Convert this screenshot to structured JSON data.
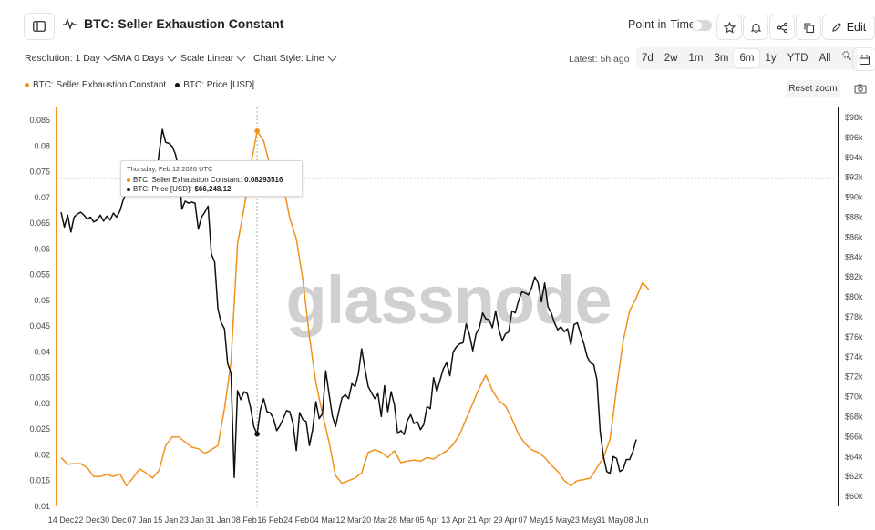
{
  "header": {
    "title": "BTC: Seller Exhaustion Constant",
    "point_in_time_label": "Point-in-Time",
    "edit_label": "Edit"
  },
  "controls": {
    "resolution": "Resolution: 1 Day",
    "sma": "SMA 0 Days",
    "scale": "Scale Linear",
    "chart_style": "Chart Style: Line",
    "latest": "Latest: 5h ago",
    "ranges": [
      "7d",
      "2w",
      "1m",
      "3m",
      "6m",
      "1y",
      "YTD",
      "All"
    ],
    "active_range": "6m"
  },
  "legend": {
    "series1": "BTC: Seller Exhaustion Constant",
    "series2": "BTC: Price [USD]"
  },
  "reset_zoom_label": "Reset zoom",
  "watermark": "glassnode",
  "tooltip": {
    "date": "Thursday, Feb 12 2026 UTC",
    "row1_label": "BTC: Seller Exhaustion Constant:",
    "row1_value": "0.08293516",
    "row2_label": "BTC: Price [USD]:",
    "row2_value": "$66,248.12"
  },
  "colors": {
    "sec": "#f0921c",
    "price": "#111111"
  },
  "chart_data": {
    "type": "line",
    "x_labels": [
      "14 Dec",
      "22 Dec",
      "30 Dec",
      "07 Jan",
      "15 Jan",
      "23 Jan",
      "31 Jan",
      "08 Feb",
      "16 Feb",
      "24 Feb",
      "04 Mar",
      "12 Mar",
      "20 Mar",
      "28 Mar",
      "05 Apr",
      "13 Apr",
      "21 Apr",
      "29 Apr",
      "07 May",
      "15 May",
      "23 May",
      "31 May",
      "08 Jun"
    ],
    "y_left_ticks": [
      "0.01",
      "0.015",
      "0.02",
      "0.025",
      "0.03",
      "0.035",
      "0.04",
      "0.045",
      "0.05",
      "0.055",
      "0.06",
      "0.065",
      "0.07",
      "0.075",
      "0.08",
      "0.085"
    ],
    "y_right_ticks": [
      "$60k",
      "$62k",
      "$64k",
      "$66k",
      "$68k",
      "$70k",
      "$72k",
      "$74k",
      "$76k",
      "$78k",
      "$80k",
      "$82k",
      "$84k",
      "$86k",
      "$88k",
      "$90k",
      "$92k",
      "$94k",
      "$96k",
      "$98k"
    ],
    "y_left_range": [
      0.01,
      0.0875
    ],
    "y_right_range": [
      59000,
      99000
    ],
    "grid": false,
    "legend_placement": "top-left",
    "series": [
      {
        "name": "BTC: Seller Exhaustion Constant",
        "axis": "left",
        "points": [
          [
            "14 Dec",
            0.0195
          ],
          [
            "16 Dec",
            0.0182
          ],
          [
            "18 Dec",
            0.0183
          ],
          [
            "20 Dec",
            0.0183
          ],
          [
            "22 Dec",
            0.0175
          ],
          [
            "24 Dec",
            0.0158
          ],
          [
            "26 Dec",
            0.0158
          ],
          [
            "28 Dec",
            0.0162
          ],
          [
            "30 Dec",
            0.0158
          ],
          [
            "01 Jan",
            0.0163
          ],
          [
            "03 Jan",
            0.014
          ],
          [
            "05 Jan",
            0.0155
          ],
          [
            "07 Jan",
            0.0173
          ],
          [
            "09 Jan",
            0.0165
          ],
          [
            "11 Jan",
            0.0155
          ],
          [
            "13 Jan",
            0.017
          ],
          [
            "15 Jan",
            0.0218
          ],
          [
            "17 Jan",
            0.0235
          ],
          [
            "19 Jan",
            0.0235
          ],
          [
            "21 Jan",
            0.0225
          ],
          [
            "23 Jan",
            0.0215
          ],
          [
            "25 Jan",
            0.0212
          ],
          [
            "27 Jan",
            0.0203
          ],
          [
            "29 Jan",
            0.021
          ],
          [
            "31 Jan",
            0.0218
          ],
          [
            "02 Feb",
            0.029
          ],
          [
            "04 Feb",
            0.038
          ],
          [
            "06 Feb",
            0.061
          ],
          [
            "08 Feb",
            0.068
          ],
          [
            "10 Feb",
            0.076
          ],
          [
            "12 Feb",
            0.0829
          ],
          [
            "14 Feb",
            0.081
          ],
          [
            "16 Feb",
            0.076
          ],
          [
            "18 Feb",
            0.073
          ],
          [
            "20 Feb",
            0.0725
          ],
          [
            "22 Feb",
            0.066
          ],
          [
            "24 Feb",
            0.062
          ],
          [
            "26 Feb",
            0.054
          ],
          [
            "28 Feb",
            0.043
          ],
          [
            "02 Mar",
            0.034
          ],
          [
            "04 Mar",
            0.028
          ],
          [
            "06 Mar",
            0.0225
          ],
          [
            "08 Mar",
            0.016
          ],
          [
            "10 Mar",
            0.0145
          ],
          [
            "12 Mar",
            0.015
          ],
          [
            "14 Mar",
            0.0155
          ],
          [
            "16 Mar",
            0.0165
          ],
          [
            "18 Mar",
            0.0205
          ],
          [
            "20 Mar",
            0.021
          ],
          [
            "22 Mar",
            0.0205
          ],
          [
            "24 Mar",
            0.0195
          ],
          [
            "26 Mar",
            0.0208
          ],
          [
            "28 Mar",
            0.0185
          ],
          [
            "30 Mar",
            0.0188
          ],
          [
            "01 Apr",
            0.019
          ],
          [
            "03 Apr",
            0.0188
          ],
          [
            "05 Apr",
            0.0195
          ],
          [
            "07 Apr",
            0.0192
          ],
          [
            "09 Apr",
            0.02
          ],
          [
            "11 Apr",
            0.0208
          ],
          [
            "13 Apr",
            0.022
          ],
          [
            "15 Apr",
            0.024
          ],
          [
            "17 Apr",
            0.027
          ],
          [
            "19 Apr",
            0.03
          ],
          [
            "21 Apr",
            0.033
          ],
          [
            "23 Apr",
            0.0355
          ],
          [
            "25 Apr",
            0.0325
          ],
          [
            "27 Apr",
            0.0305
          ],
          [
            "29 Apr",
            0.0295
          ],
          [
            "01 May",
            0.027
          ],
          [
            "03 May",
            0.024
          ],
          [
            "05 May",
            0.0222
          ],
          [
            "07 May",
            0.021
          ],
          [
            "09 May",
            0.0205
          ],
          [
            "11 May",
            0.0195
          ],
          [
            "13 May",
            0.018
          ],
          [
            "15 May",
            0.0168
          ],
          [
            "17 May",
            0.015
          ],
          [
            "19 May",
            0.014
          ],
          [
            "21 May",
            0.015
          ],
          [
            "23 May",
            0.0152
          ],
          [
            "25 May",
            0.0155
          ],
          [
            "27 May",
            0.0175
          ],
          [
            "29 May",
            0.0195
          ],
          [
            "31 May",
            0.023
          ],
          [
            "02 Jun",
            0.033
          ],
          [
            "04 Jun",
            0.042
          ],
          [
            "06 Jun",
            0.048
          ],
          [
            "08 Jun",
            0.0505
          ],
          [
            "10 Jun",
            0.0535
          ],
          [
            "12 Jun",
            0.052
          ]
        ]
      },
      {
        "name": "BTC: Price [USD]",
        "axis": "right",
        "points": [
          [
            "14 Dec",
            88500
          ],
          [
            "15 Dec",
            87000
          ],
          [
            "16 Dec",
            88200
          ],
          [
            "17 Dec",
            86500
          ],
          [
            "18 Dec",
            88000
          ],
          [
            "19 Dec",
            88300
          ],
          [
            "20 Dec",
            88500
          ],
          [
            "21 Dec",
            88200
          ],
          [
            "22 Dec",
            87800
          ],
          [
            "23 Dec",
            88000
          ],
          [
            "24 Dec",
            87500
          ],
          [
            "25 Dec",
            87700
          ],
          [
            "26 Dec",
            88200
          ],
          [
            "27 Dec",
            87600
          ],
          [
            "28 Dec",
            88100
          ],
          [
            "29 Dec",
            87700
          ],
          [
            "30 Dec",
            88400
          ],
          [
            "31 Dec",
            88000
          ],
          [
            "01 Jan",
            88600
          ],
          [
            "02 Jan",
            89700
          ],
          [
            "03 Jan",
            90500
          ],
          [
            "04 Jan",
            91800
          ],
          [
            "05 Jan",
            93000
          ],
          [
            "06 Jan",
            92500
          ],
          [
            "07 Jan",
            91500
          ],
          [
            "08 Jan",
            90800
          ],
          [
            "09 Jan",
            90500
          ],
          [
            "10 Jan",
            90200
          ],
          [
            "11 Jan",
            90800
          ],
          [
            "12 Jan",
            91500
          ],
          [
            "13 Jan",
            94500
          ],
          [
            "14 Jan",
            96800
          ],
          [
            "15 Jan",
            95500
          ],
          [
            "16 Jan",
            95400
          ],
          [
            "17 Jan",
            95100
          ],
          [
            "18 Jan",
            94300
          ],
          [
            "19 Jan",
            92800
          ],
          [
            "20 Jan",
            88800
          ],
          [
            "21 Jan",
            89600
          ],
          [
            "22 Jan",
            89400
          ],
          [
            "23 Jan",
            89500
          ],
          [
            "24 Jan",
            89400
          ],
          [
            "25 Jan",
            86800
          ],
          [
            "26 Jan",
            88000
          ],
          [
            "27 Jan",
            88500
          ],
          [
            "28 Jan",
            89100
          ],
          [
            "29 Jan",
            84300
          ],
          [
            "30 Jan",
            83500
          ],
          [
            "31 Jan",
            78800
          ],
          [
            "01 Feb",
            77400
          ],
          [
            "02 Feb",
            76800
          ],
          [
            "03 Feb",
            73300
          ],
          [
            "04 Feb",
            72400
          ],
          [
            "05 Feb",
            61900
          ],
          [
            "06 Feb",
            70600
          ],
          [
            "07 Feb",
            69700
          ],
          [
            "08 Feb",
            70500
          ],
          [
            "09 Feb",
            70300
          ],
          [
            "10 Feb",
            68900
          ],
          [
            "11 Feb",
            67000
          ],
          [
            "12 Feb",
            66250
          ],
          [
            "13 Feb",
            68700
          ],
          [
            "14 Feb",
            69800
          ],
          [
            "15 Feb",
            68500
          ],
          [
            "16 Feb",
            68400
          ],
          [
            "17 Feb",
            67800
          ],
          [
            "18 Feb",
            66600
          ],
          [
            "19 Feb",
            67100
          ],
          [
            "20 Feb",
            67800
          ],
          [
            "21 Feb",
            68600
          ],
          [
            "22 Feb",
            68500
          ],
          [
            "23 Feb",
            67300
          ],
          [
            "24 Feb",
            64600
          ],
          [
            "25 Feb",
            68400
          ],
          [
            "26 Feb",
            67700
          ],
          [
            "27 Feb",
            67500
          ],
          [
            "28 Feb",
            65100
          ],
          [
            "01 Mar",
            66700
          ],
          [
            "02 Mar",
            69500
          ],
          [
            "03 Mar",
            67800
          ],
          [
            "04 Mar",
            68300
          ],
          [
            "05 Mar",
            72600
          ],
          [
            "06 Mar",
            70300
          ],
          [
            "07 Mar",
            68100
          ],
          [
            "08 Mar",
            67000
          ],
          [
            "09 Mar",
            68500
          ],
          [
            "10 Mar",
            69900
          ],
          [
            "11 Mar",
            70200
          ],
          [
            "12 Mar",
            69800
          ],
          [
            "13 Mar",
            71300
          ],
          [
            "14 Mar",
            71000
          ],
          [
            "15 Mar",
            72300
          ],
          [
            "16 Mar",
            74800
          ],
          [
            "17 Mar",
            72800
          ],
          [
            "18 Mar",
            71000
          ],
          [
            "19 Mar",
            70400
          ],
          [
            "20 Mar",
            69800
          ],
          [
            "21 Mar",
            70300
          ],
          [
            "22 Mar",
            68000
          ],
          [
            "23 Mar",
            71100
          ],
          [
            "24 Mar",
            68500
          ],
          [
            "25 Mar",
            70500
          ],
          [
            "26 Mar",
            69200
          ],
          [
            "27 Mar",
            66300
          ],
          [
            "28 Mar",
            66600
          ],
          [
            "29 Mar",
            66200
          ],
          [
            "30 Mar",
            67600
          ],
          [
            "31 Mar",
            68200
          ],
          [
            "01 Apr",
            67300
          ],
          [
            "02 Apr",
            67500
          ],
          [
            "03 Apr",
            66700
          ],
          [
            "04 Apr",
            67200
          ],
          [
            "05 Apr",
            69000
          ],
          [
            "06 Apr",
            68800
          ],
          [
            "07 Apr",
            71900
          ],
          [
            "08 Apr",
            70500
          ],
          [
            "09 Apr",
            71700
          ],
          [
            "10 Apr",
            72800
          ],
          [
            "11 Apr",
            73400
          ],
          [
            "12 Apr",
            72100
          ],
          [
            "13 Apr",
            74500
          ],
          [
            "14 Apr",
            75000
          ],
          [
            "15 Apr",
            75300
          ],
          [
            "16 Apr",
            75400
          ],
          [
            "17 Apr",
            77300
          ],
          [
            "18 Apr",
            76200
          ],
          [
            "19 Apr",
            74600
          ],
          [
            "20 Apr",
            76300
          ],
          [
            "21 Apr",
            76900
          ],
          [
            "22 Apr",
            78400
          ],
          [
            "23 Apr",
            77800
          ],
          [
            "24 Apr",
            77700
          ],
          [
            "25 Apr",
            76900
          ],
          [
            "26 Apr",
            78600
          ],
          [
            "27 Apr",
            76700
          ],
          [
            "28 Apr",
            75600
          ],
          [
            "29 Apr",
            76300
          ],
          [
            "30 Apr",
            76500
          ],
          [
            "01 May",
            78600
          ],
          [
            "02 May",
            78400
          ],
          [
            "03 May",
            79600
          ],
          [
            "04 May",
            80500
          ],
          [
            "05 May",
            80400
          ],
          [
            "06 May",
            80200
          ],
          [
            "07 May",
            80900
          ],
          [
            "08 May",
            82000
          ],
          [
            "09 May",
            81400
          ],
          [
            "10 May",
            79500
          ],
          [
            "11 May",
            81400
          ],
          [
            "12 May",
            79000
          ],
          [
            "13 May",
            78400
          ],
          [
            "14 May",
            77400
          ],
          [
            "15 May",
            76700
          ],
          [
            "16 May",
            77000
          ],
          [
            "17 May",
            76500
          ],
          [
            "18 May",
            76800
          ],
          [
            "19 May",
            75200
          ],
          [
            "20 May",
            77200
          ],
          [
            "21 May",
            77400
          ],
          [
            "22 May",
            76300
          ],
          [
            "23 May",
            75300
          ],
          [
            "24 May",
            74000
          ],
          [
            "25 May",
            73400
          ],
          [
            "26 May",
            73200
          ],
          [
            "27 May",
            71700
          ],
          [
            "28 May",
            66500
          ],
          [
            "29 May",
            64000
          ],
          [
            "30 May",
            62500
          ],
          [
            "31 May",
            62300
          ],
          [
            "01 Jun",
            64000
          ],
          [
            "02 Jun",
            63800
          ],
          [
            "03 Jun",
            62500
          ],
          [
            "04 Jun",
            62700
          ],
          [
            "05 Jun",
            63700
          ],
          [
            "06 Jun",
            63700
          ],
          [
            "07 Jun",
            64500
          ],
          [
            "08 Jun",
            65700
          ]
        ]
      }
    ],
    "highlight": {
      "date": "12 Feb",
      "sec": 0.08293516,
      "price": 66248.12
    }
  }
}
